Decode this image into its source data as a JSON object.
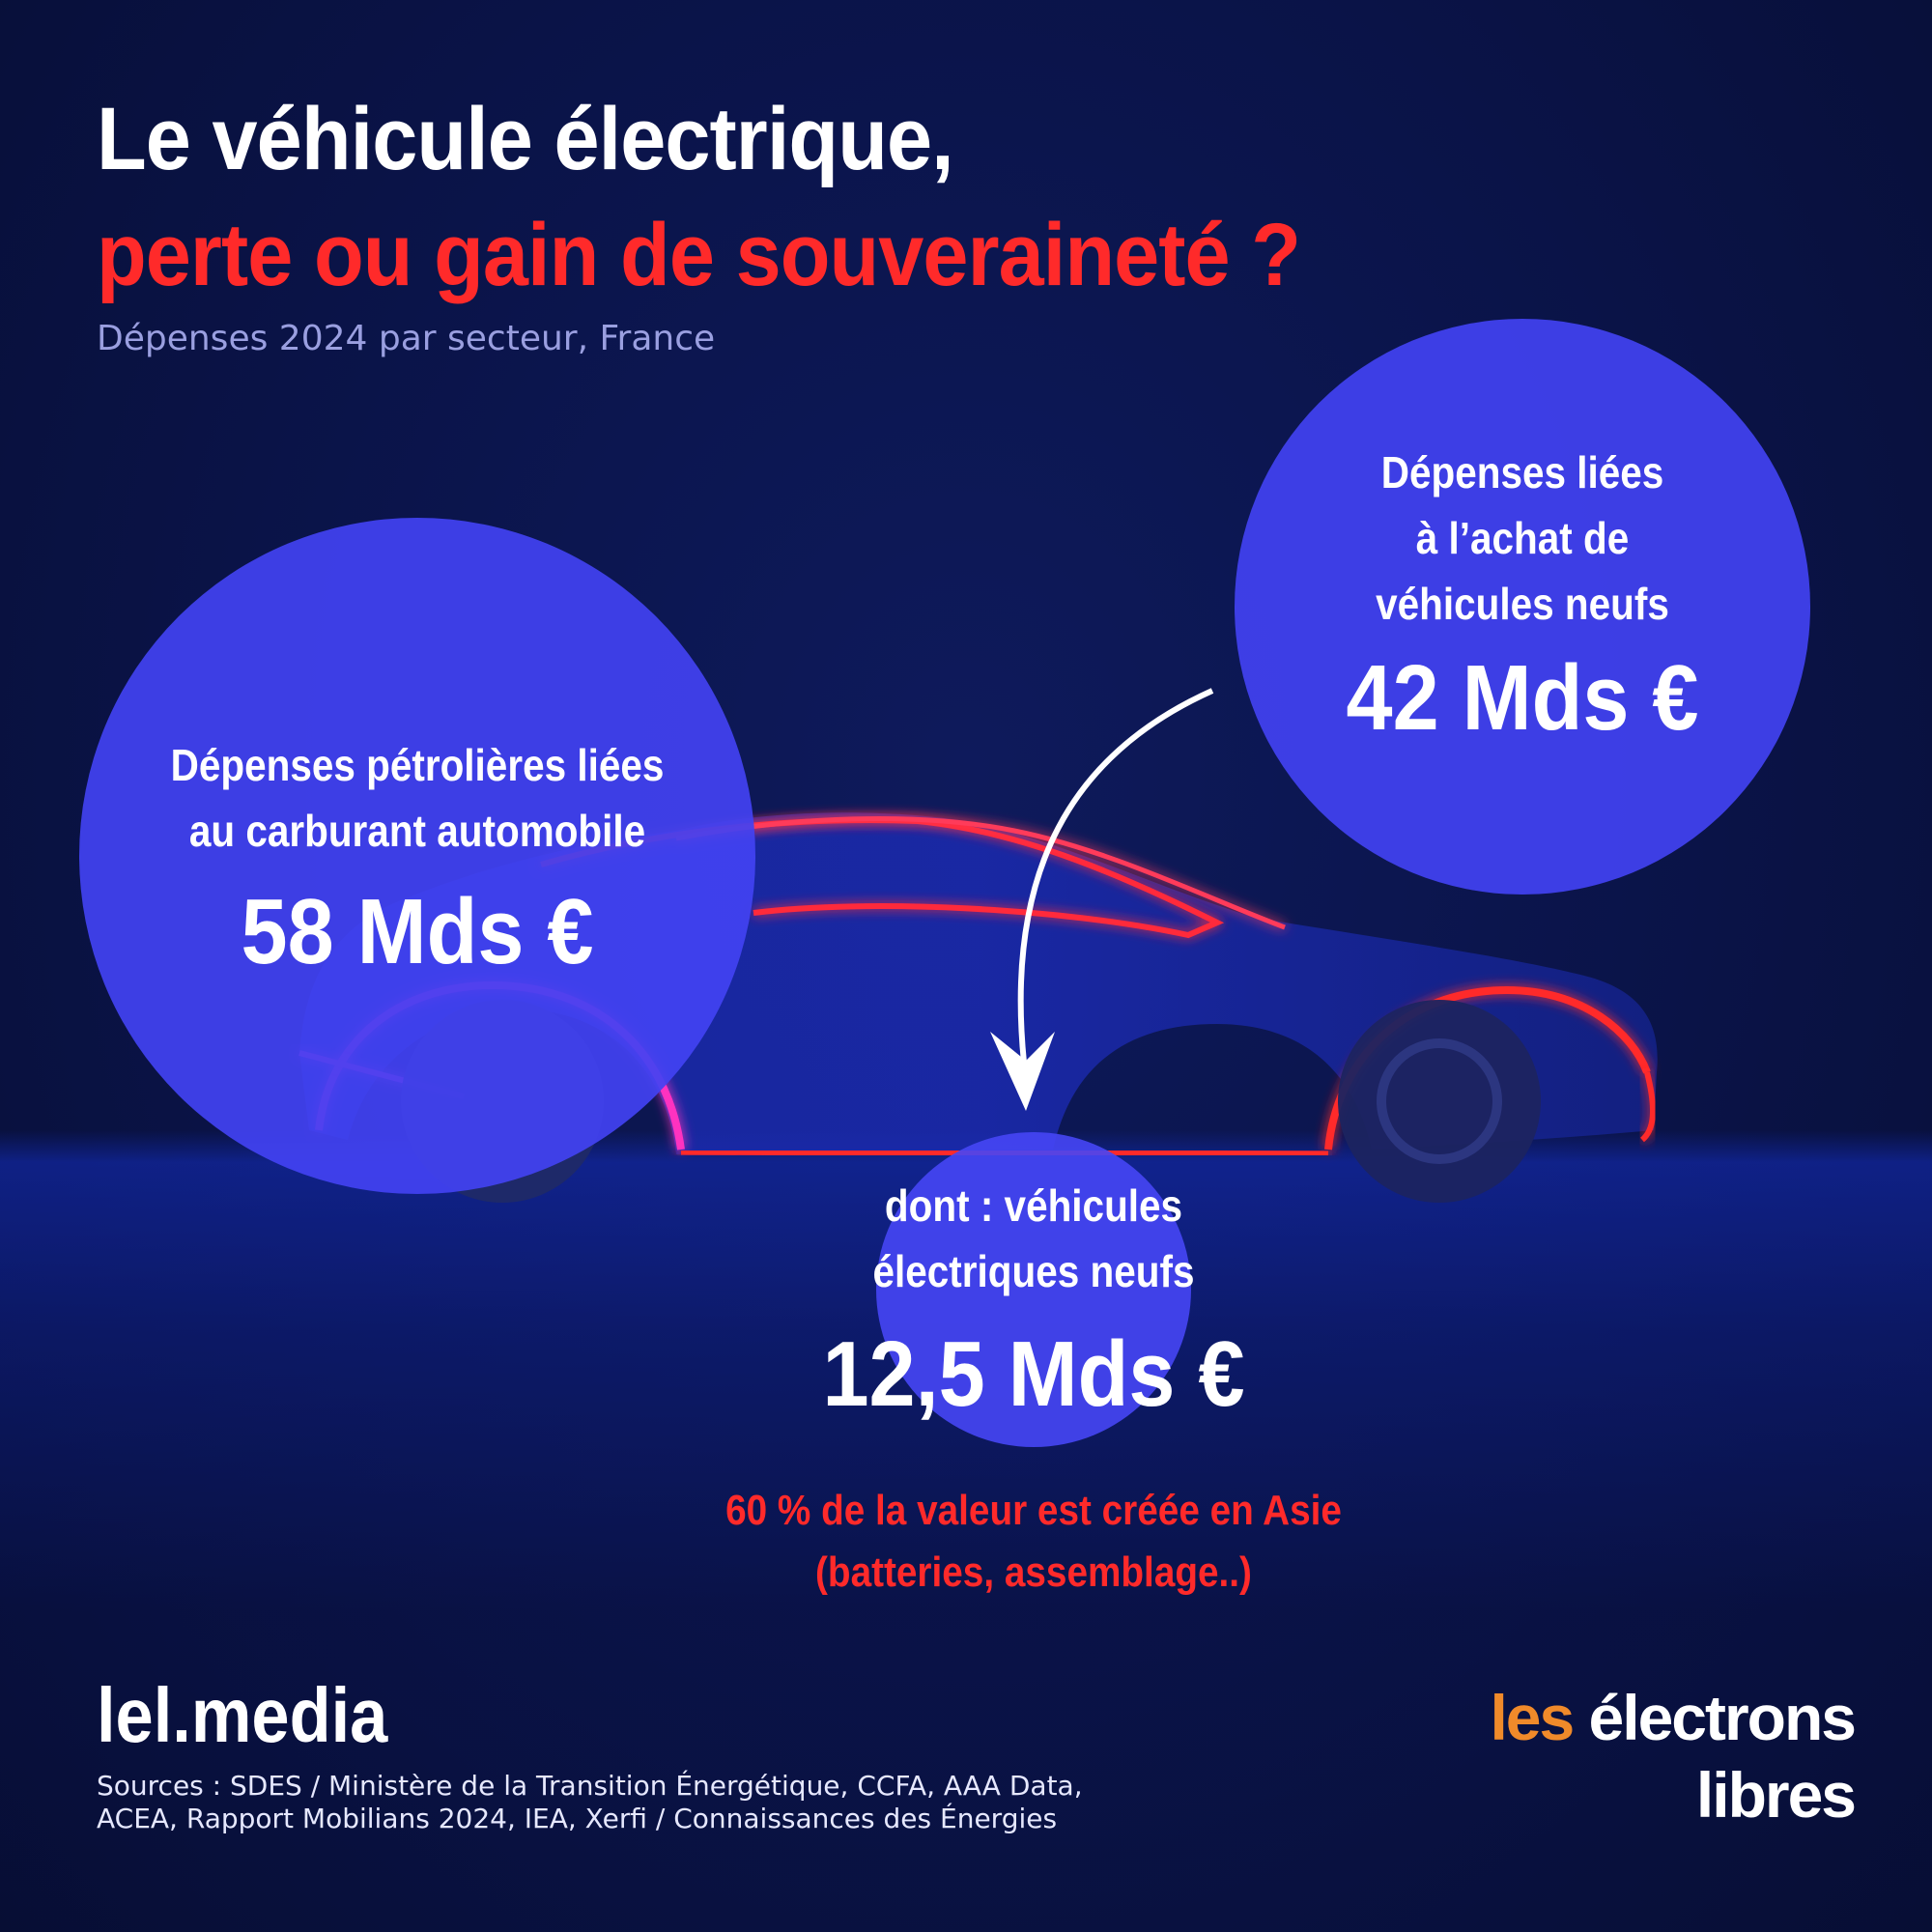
{
  "title": {
    "line1": "Le véhicule électrique,",
    "line2": "perte ou gain de souveraineté ?"
  },
  "subtitle": "Dépenses 2024 par secteur, France",
  "left_bubble": {
    "label_line1": "Dépenses pétrolières liées",
    "label_line2": "au carburant automobile",
    "value": "58 Mds €"
  },
  "right_bubble": {
    "label_line1": "Dépenses liées",
    "label_line2": "à l’achat de",
    "label_line3": "véhicules neufs",
    "value": "42 Mds €"
  },
  "small_bubble": {
    "label_line1": "dont : véhicules",
    "label_line2": "électriques neufs",
    "value": "12,5 Mds €"
  },
  "note": {
    "line1": "60 % de la valeur est créée en Asie",
    "line2": "(batteries, assemblage..)"
  },
  "brand": "lel.media",
  "sources": {
    "line1": "Sources : SDES / Ministère de la Transition Énergétique, CCFA, AAA Data,",
    "line2": "ACEA, Rapport Mobilians 2024, IEA, Xerfi / Connaissances des Énergies"
  },
  "logo": {
    "word1": "les",
    "word2": "électrons",
    "word3": "libres"
  },
  "colors": {
    "background": "#0a1347",
    "accent_red": "#ff2a2a",
    "bubble_blue": "#4242f2",
    "logo_orange": "#f08a2a"
  }
}
